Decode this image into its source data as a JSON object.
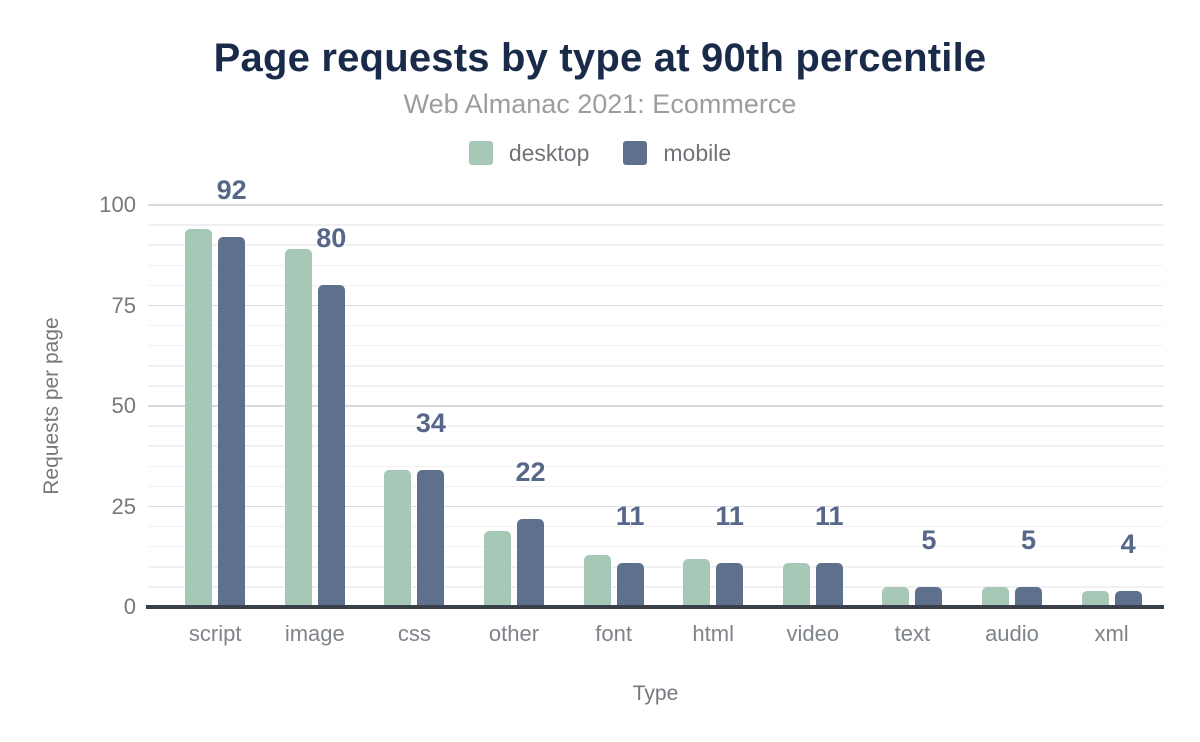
{
  "chart_data": {
    "type": "bar",
    "title": "Page requests by type at 90th percentile",
    "subtitle": "Web Almanac 2021: Ecommerce",
    "xlabel": "Type",
    "ylabel": "Requests per page",
    "categories": [
      "script",
      "image",
      "css",
      "other",
      "font",
      "html",
      "video",
      "text",
      "audio",
      "xml"
    ],
    "series": [
      {
        "name": "desktop",
        "color": "#a8c8b7",
        "values": [
          94,
          89,
          34,
          19,
          13,
          12,
          11,
          5,
          5,
          4
        ]
      },
      {
        "name": "mobile",
        "color": "#5f708c",
        "values": [
          92,
          80,
          34,
          22,
          11,
          11,
          11,
          5,
          5,
          4
        ]
      }
    ],
    "value_labels": {
      "series": "mobile",
      "values": [
        "92",
        "80",
        "34",
        "22",
        "11",
        "11",
        "11",
        "5",
        "5",
        "4"
      ]
    },
    "yticks": [
      0,
      25,
      50,
      75,
      100
    ],
    "ylim": [
      0,
      100
    ],
    "minor_grid_step": 5,
    "grid": "horizontal",
    "legend_position": "top",
    "colors": {
      "title": "#1a2b49",
      "subtitle": "#9b9da1",
      "value_label": "#57678a",
      "axis_text": "#75787d",
      "axis_line": "#394049",
      "major_grid": "#d9dadd",
      "minor_grid": "#f1f1f3"
    }
  }
}
